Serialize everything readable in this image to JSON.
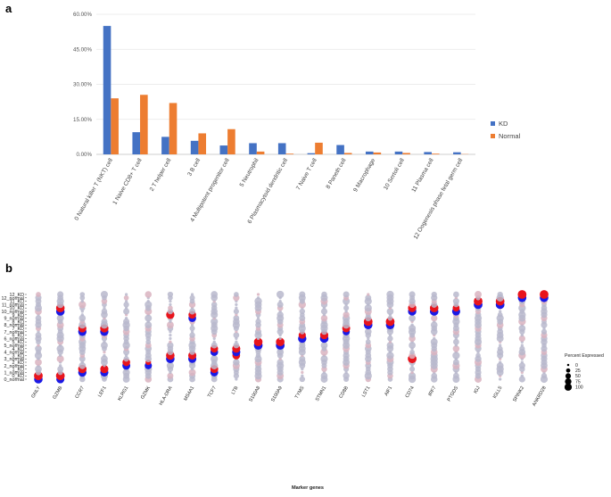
{
  "chart_data": [
    {
      "panel": "a",
      "type": "bar",
      "categories": [
        "0 Natural killer T (NKT) cell",
        "1 Naive CD8+ T cell",
        "2 T helper cell",
        "3 B cell",
        "4 Multipotent progenitor cell",
        "5 Neutrophil",
        "6 Plasmacytoid dendritic cell",
        "7 Naive T cell",
        "8 Paneth cell",
        "9 Macrophage",
        "10 Sertoli cell",
        "11 Plasma cell",
        "12 Oogenesis phase fetal germ cell"
      ],
      "series": [
        {
          "name": "KD",
          "color": "#4472c4",
          "values": [
            55.0,
            9.5,
            7.5,
            5.8,
            3.8,
            4.8,
            4.8,
            0.5,
            4.0,
            1.2,
            1.2,
            1.0,
            0.9
          ]
        },
        {
          "name": "Normal",
          "color": "#ed7d31",
          "values": [
            24.0,
            25.5,
            22.0,
            9.0,
            10.8,
            1.2,
            0.3,
            5.0,
            0.6,
            0.8,
            0.6,
            0.3,
            0.1
          ]
        }
      ],
      "yticks": [
        "0.00%",
        "15.00%",
        "30.00%",
        "45.00%",
        "60.00%"
      ],
      "ylim": [
        0,
        60
      ],
      "legend": "right"
    },
    {
      "panel": "b",
      "type": "dotplot",
      "xlabel": "Marker genes",
      "genes": [
        "GNLY",
        "GZMB",
        "CCR7",
        "LEF1",
        "KLRG1",
        "GZMK",
        "HLA-DRA",
        "MS4A1",
        "TCF7",
        "LTB",
        "S100A8",
        "S100A9",
        "TYMS",
        "STMN1",
        "CD8B",
        "LST1",
        "AIF1",
        "CD74",
        "IRF7",
        "PTGDS",
        "IGJ",
        "IGLL5",
        "SPINK2",
        "ANKRD28"
      ],
      "groups": [
        "0_normal",
        "0_KD",
        "1_normal",
        "1_KD",
        "2_normal",
        "2_KD",
        "3_normal",
        "3_KD",
        "4_normal",
        "4_KD",
        "5_normal",
        "5_KD",
        "6_normal",
        "6_KD",
        "7_normal",
        "7_KD",
        "8_normal",
        "8_KD",
        "9_normal",
        "9_KD",
        "10_normal",
        "10_KD",
        "11_normal",
        "11_KD",
        "12_normal",
        "12_KD"
      ],
      "size_legend": {
        "title": "Percent Expressed",
        "values": [
          "0",
          "25",
          "50",
          "75",
          "100"
        ]
      },
      "highlights": [
        {
          "group": "0_normal",
          "gene": "GNLY",
          "pct": 90,
          "color": "blue"
        },
        {
          "group": "0_normal",
          "gene": "GZMB",
          "pct": 80,
          "color": "blue"
        },
        {
          "group": "0_KD",
          "gene": "GNLY",
          "pct": 95,
          "color": "red"
        },
        {
          "group": "0_KD",
          "gene": "GZMB",
          "pct": 95,
          "color": "red"
        },
        {
          "group": "1_normal",
          "gene": "CCR7",
          "pct": 85,
          "color": "blue"
        },
        {
          "group": "1_normal",
          "gene": "LEF1",
          "pct": 80,
          "color": "blue"
        },
        {
          "group": "1_KD",
          "gene": "CCR7",
          "pct": 85,
          "color": "red"
        },
        {
          "group": "1_KD",
          "gene": "LEF1",
          "pct": 80,
          "color": "red"
        },
        {
          "group": "1_KD",
          "gene": "TCF7",
          "pct": 75,
          "color": "red"
        },
        {
          "group": "1_normal",
          "gene": "TCF7",
          "pct": 75,
          "color": "blue"
        },
        {
          "group": "2_normal",
          "gene": "KLRG1",
          "pct": 75,
          "color": "blue"
        },
        {
          "group": "2_normal",
          "gene": "GZMK",
          "pct": 60,
          "color": "blue"
        },
        {
          "group": "2_KD",
          "gene": "KLRG1",
          "pct": 70,
          "color": "red"
        },
        {
          "group": "2_KD",
          "gene": "GZMK",
          "pct": 30,
          "color": "red"
        },
        {
          "group": "3_normal",
          "gene": "HLA-DRA",
          "pct": 90,
          "color": "blue"
        },
        {
          "group": "3_normal",
          "gene": "MS4A1",
          "pct": 80,
          "color": "blue"
        },
        {
          "group": "3_normal",
          "gene": "CD74",
          "pct": 95,
          "color": "red"
        },
        {
          "group": "3_KD",
          "gene": "HLA-DRA",
          "pct": 90,
          "color": "red"
        },
        {
          "group": "3_KD",
          "gene": "MS4A1",
          "pct": 80,
          "color": "red"
        },
        {
          "group": "3_KD",
          "gene": "LTB",
          "pct": 70,
          "color": "red"
        },
        {
          "group": "4_normal",
          "gene": "TCF7",
          "pct": 70,
          "color": "blue"
        },
        {
          "group": "4_normal",
          "gene": "LTB",
          "pct": 80,
          "color": "blue"
        },
        {
          "group": "4_KD",
          "gene": "TCF7",
          "pct": 70,
          "color": "red"
        },
        {
          "group": "4_KD",
          "gene": "LTB",
          "pct": 80,
          "color": "red"
        },
        {
          "group": "5_normal",
          "gene": "S100A8",
          "pct": 95,
          "color": "blue"
        },
        {
          "group": "5_normal",
          "gene": "S100A9",
          "pct": 95,
          "color": "blue"
        },
        {
          "group": "5_KD",
          "gene": "S100A8",
          "pct": 90,
          "color": "red"
        },
        {
          "group": "5_KD",
          "gene": "S100A9",
          "pct": 90,
          "color": "red"
        },
        {
          "group": "6_normal",
          "gene": "TYMS",
          "pct": 85,
          "color": "blue"
        },
        {
          "group": "6_normal",
          "gene": "STMN1",
          "pct": 90,
          "color": "blue"
        },
        {
          "group": "6_KD",
          "gene": "TYMS",
          "pct": 60,
          "color": "red"
        },
        {
          "group": "6_KD",
          "gene": "STMN1",
          "pct": 80,
          "color": "red"
        },
        {
          "group": "7_normal",
          "gene": "CCR7",
          "pct": 85,
          "color": "blue"
        },
        {
          "group": "7_normal",
          "gene": "LEF1",
          "pct": 85,
          "color": "blue"
        },
        {
          "group": "7_normal",
          "gene": "CD8B",
          "pct": 60,
          "color": "blue"
        },
        {
          "group": "7_KD",
          "gene": "CCR7",
          "pct": 80,
          "color": "red"
        },
        {
          "group": "7_KD",
          "gene": "LEF1",
          "pct": 85,
          "color": "red"
        },
        {
          "group": "7_KD",
          "gene": "CD8B",
          "pct": 75,
          "color": "red"
        },
        {
          "group": "8_normal",
          "gene": "LST1",
          "pct": 90,
          "color": "blue"
        },
        {
          "group": "8_normal",
          "gene": "AIF1",
          "pct": 90,
          "color": "blue"
        },
        {
          "group": "8_KD",
          "gene": "LST1",
          "pct": 95,
          "color": "red"
        },
        {
          "group": "8_KD",
          "gene": "AIF1",
          "pct": 95,
          "color": "red"
        },
        {
          "group": "9_KD",
          "gene": "HLA-DRA",
          "pct": 85,
          "color": "red"
        },
        {
          "group": "9_KD",
          "gene": "MS4A1",
          "pct": 70,
          "color": "red"
        },
        {
          "group": "9_normal",
          "gene": "MS4A1",
          "pct": 70,
          "color": "blue"
        },
        {
          "group": "10_normal",
          "gene": "GZMB",
          "pct": 90,
          "color": "blue"
        },
        {
          "group": "10_normal",
          "gene": "CD74",
          "pct": 85,
          "color": "blue"
        },
        {
          "group": "10_normal",
          "gene": "IRF7",
          "pct": 90,
          "color": "blue"
        },
        {
          "group": "10_normal",
          "gene": "PTGDS",
          "pct": 80,
          "color": "blue"
        },
        {
          "group": "10_KD",
          "gene": "GZMB",
          "pct": 90,
          "color": "red"
        },
        {
          "group": "10_KD",
          "gene": "CD74",
          "pct": 85,
          "color": "red"
        },
        {
          "group": "10_KD",
          "gene": "IRF7",
          "pct": 90,
          "color": "red"
        },
        {
          "group": "10_KD",
          "gene": "PTGDS",
          "pct": 55,
          "color": "red"
        },
        {
          "group": "11_normal",
          "gene": "IGJ",
          "pct": 95,
          "color": "blue"
        },
        {
          "group": "11_normal",
          "gene": "IGLL5",
          "pct": 95,
          "color": "blue"
        },
        {
          "group": "11_KD",
          "gene": "IGJ",
          "pct": 95,
          "color": "red"
        },
        {
          "group": "11_KD",
          "gene": "IGLL5",
          "pct": 95,
          "color": "red"
        },
        {
          "group": "12_normal",
          "gene": "SPINK2",
          "pct": 90,
          "color": "blue"
        },
        {
          "group": "12_normal",
          "gene": "ANKRD28",
          "pct": 90,
          "color": "blue"
        },
        {
          "group": "12_KD",
          "gene": "SPINK2",
          "pct": 95,
          "color": "red"
        },
        {
          "group": "12_KD",
          "gene": "ANKRD28",
          "pct": 95,
          "color": "red"
        }
      ]
    }
  ],
  "labels": {
    "panel_a": "a",
    "panel_b": "b"
  },
  "colors": {
    "kd": "#4472c4",
    "normal": "#ed7d31",
    "dot_red": "#e8141c",
    "dot_blue": "#1a1ae6",
    "dot_grey": "#b8b8cc"
  }
}
